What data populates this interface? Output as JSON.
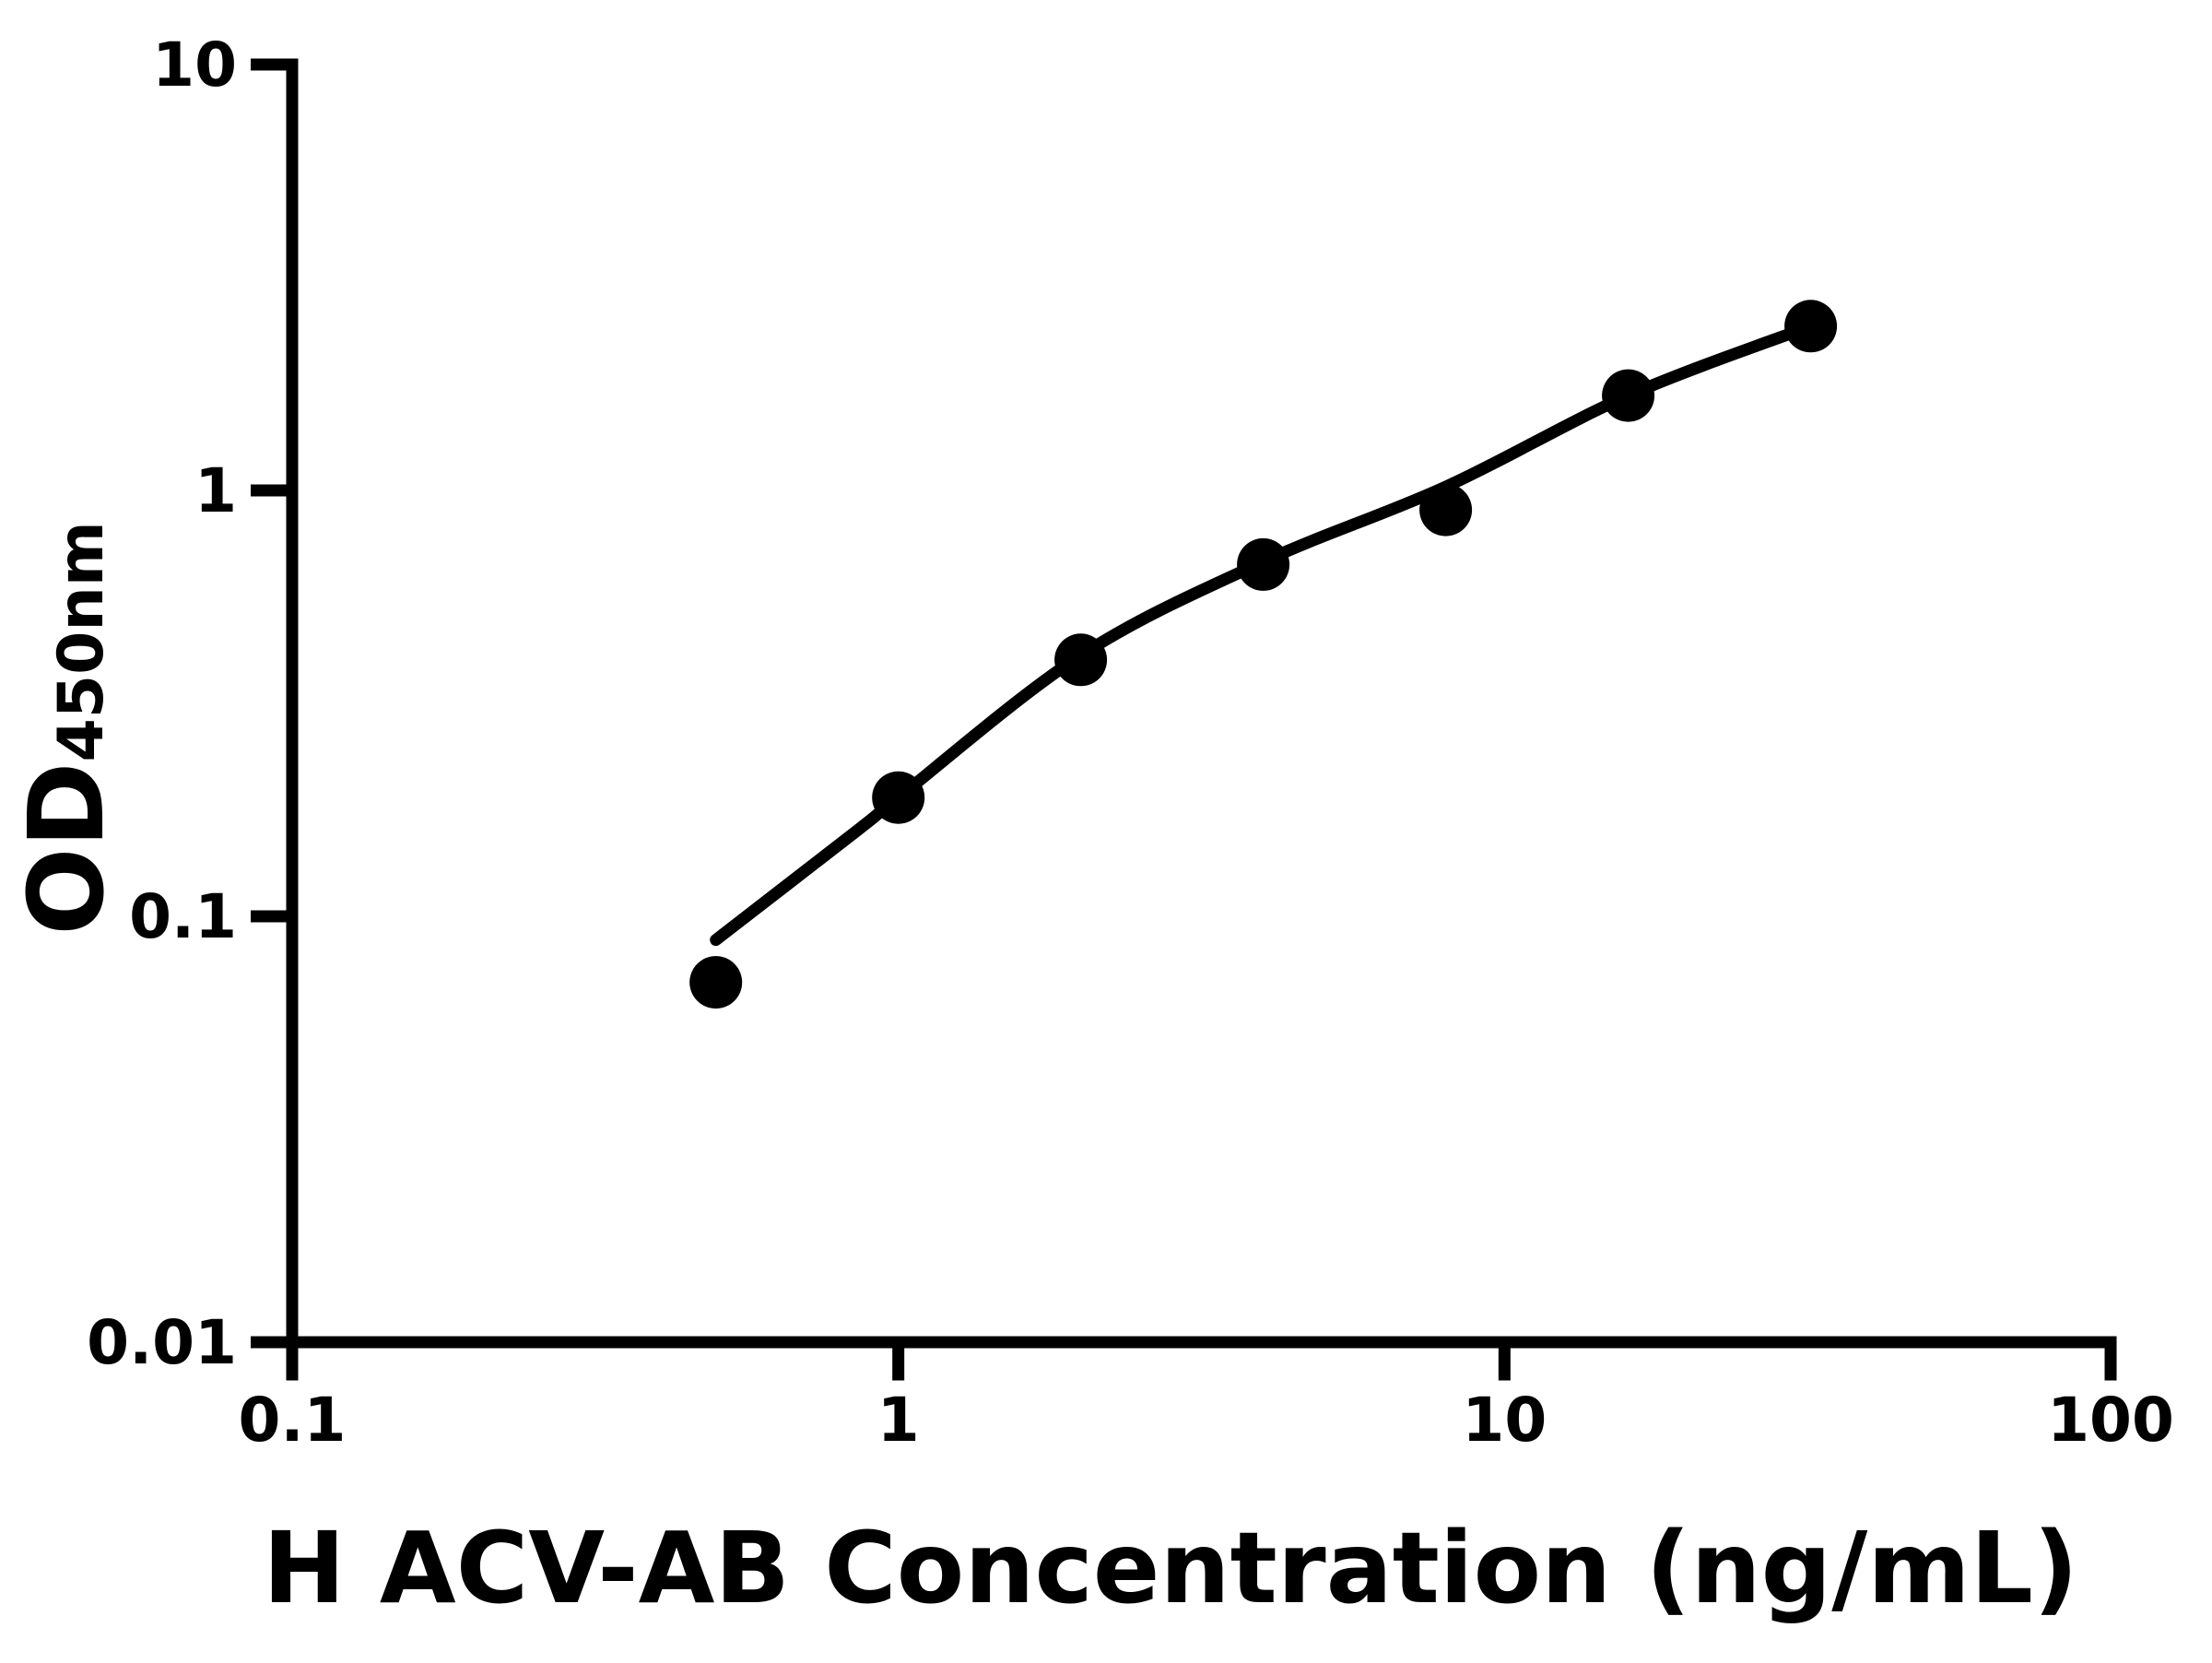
{
  "chart_data": {
    "type": "scatter",
    "title": "",
    "xlabel": "H ACV-AB Concentration (ng/mL)",
    "ylabel_main": "OD",
    "ylabel_sub": "450nm",
    "x_scale": "log",
    "y_scale": "log",
    "xlim": [
      0.1,
      100
    ],
    "ylim": [
      0.01,
      10
    ],
    "x_ticks": [
      0.1,
      1,
      10,
      100
    ],
    "x_tick_labels": [
      "0.1",
      "1",
      "10",
      "100"
    ],
    "y_ticks": [
      10,
      1,
      0.1,
      0.01
    ],
    "y_tick_labels": [
      "10",
      "1",
      "0.1",
      "0.01"
    ],
    "grid": false,
    "legend": "none",
    "series": [
      {
        "name": "standard-points",
        "marker": "filled-circle",
        "points": [
          [
            0.5,
            0.07
          ],
          [
            1,
            0.19
          ],
          [
            2,
            0.4
          ],
          [
            4,
            0.67
          ],
          [
            8,
            0.9
          ],
          [
            16,
            1.67
          ],
          [
            32,
            2.43
          ]
        ]
      }
    ],
    "fit_curve": {
      "name": "four-parameter-fit",
      "samples": [
        [
          0.5,
          0.088
        ],
        [
          0.86,
          0.16
        ],
        [
          1.0,
          0.19
        ],
        [
          2.0,
          0.41
        ],
        [
          4.0,
          0.68
        ],
        [
          8.0,
          1.02
        ],
        [
          16.0,
          1.67
        ],
        [
          32.0,
          2.43
        ]
      ]
    },
    "colors": {
      "background": "#ffffff",
      "axis": "#000000",
      "marker": "#000000",
      "line": "#000000",
      "text": "#000000"
    }
  }
}
